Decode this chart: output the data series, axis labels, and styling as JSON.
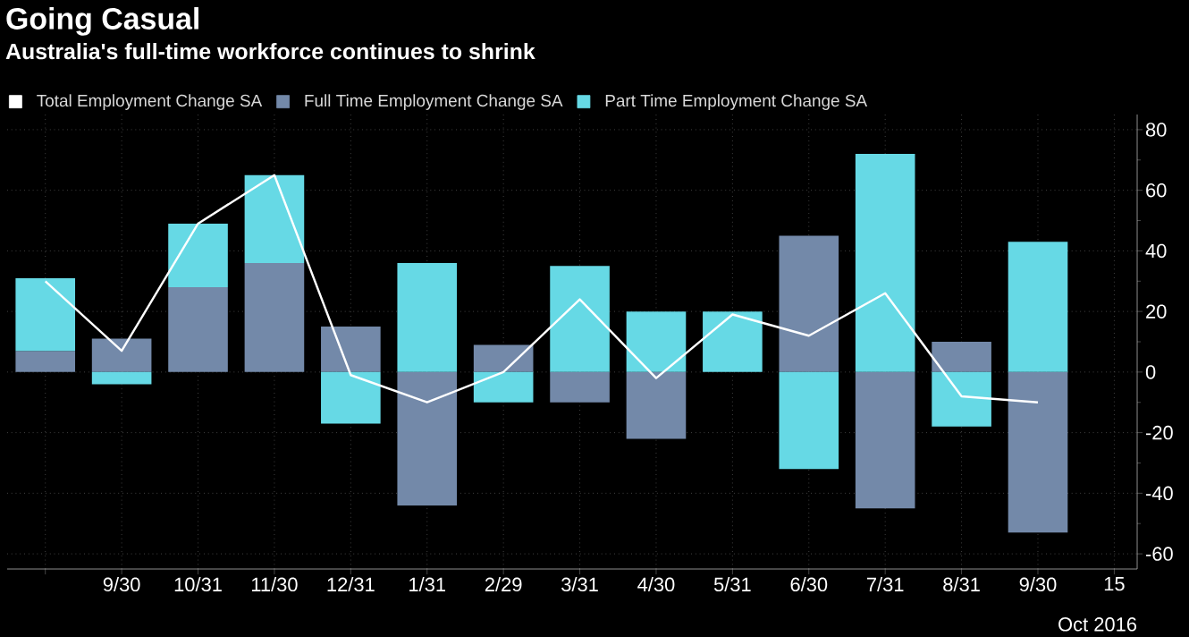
{
  "chart_data": {
    "type": "bar",
    "title": "Going Casual",
    "subtitle": "Australia's full-time workforce continues to shrink",
    "xlabel": "Oct 2016",
    "categories": [
      null,
      "9/30",
      "10/31",
      "11/30",
      "12/31",
      "1/31",
      "2/29",
      "3/31",
      "4/30",
      "5/31",
      "6/30",
      "7/31",
      "8/31",
      "9/30",
      "15"
    ],
    "series": [
      {
        "name": "Total Employment Change SA",
        "type": "line",
        "color": "#ffffff",
        "values": [
          30,
          7,
          49,
          65,
          -1,
          -10,
          0,
          24,
          -2,
          19,
          12,
          26,
          -8,
          -10,
          null
        ]
      },
      {
        "name": "Full Time Employment Change SA",
        "color": "#7389a9",
        "values": [
          7,
          11,
          28,
          36,
          15,
          -44,
          9,
          -10,
          -22,
          0,
          45,
          -45,
          10,
          -53,
          null
        ]
      },
      {
        "name": "Part Time Employment Change SA",
        "color": "#66d9e5",
        "values": [
          24,
          -4,
          21,
          29,
          -17,
          36,
          -10,
          35,
          20,
          20,
          -32,
          72,
          -18,
          43,
          null
        ]
      }
    ],
    "stacked": true,
    "ylim": [
      -65,
      85
    ],
    "yticks": [
      -60,
      -40,
      -20,
      0,
      20,
      40,
      60,
      80
    ],
    "grid": true,
    "legend": "top left",
    "marker": "none"
  }
}
